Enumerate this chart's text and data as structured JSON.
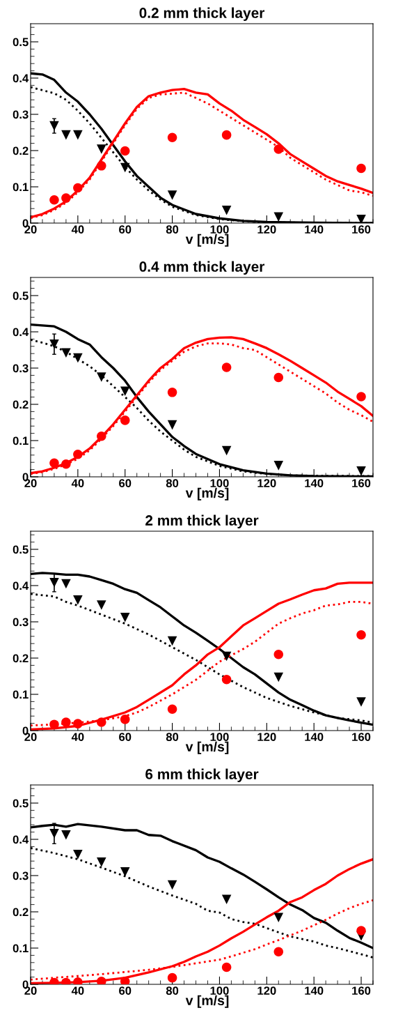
{
  "chart_data": [
    {
      "type": "line",
      "title": "0.2 mm thick layer",
      "xlabel": "v [m/s]",
      "xlim": [
        20,
        165
      ],
      "xticks": [
        20,
        40,
        60,
        80,
        100,
        120,
        140,
        160
      ],
      "ylim": [
        0,
        0.55
      ],
      "yticks": [
        0,
        0.1,
        0.2,
        0.3,
        0.4,
        0.5
      ],
      "series": [
        {
          "color": "#000000",
          "line_style": "solid",
          "x": [
            20,
            25,
            30,
            35,
            40,
            45,
            50,
            55,
            60,
            65,
            70,
            75,
            80,
            90,
            100,
            110,
            120,
            140,
            165
          ],
          "values": [
            0.413,
            0.41,
            0.395,
            0.36,
            0.335,
            0.3,
            0.26,
            0.215,
            0.17,
            0.13,
            0.1,
            0.07,
            0.05,
            0.025,
            0.013,
            0.006,
            0.003,
            0.001,
            0.0
          ]
        },
        {
          "color": "#000000",
          "line_style": "dotted",
          "x": [
            20,
            30,
            35,
            40,
            45,
            50,
            55,
            60,
            65,
            70,
            75,
            80,
            90,
            100,
            110,
            120,
            140,
            165
          ],
          "values": [
            0.375,
            0.358,
            0.34,
            0.31,
            0.275,
            0.235,
            0.195,
            0.155,
            0.12,
            0.09,
            0.065,
            0.045,
            0.022,
            0.011,
            0.005,
            0.002,
            0.001,
            0.0
          ]
        },
        {
          "color": "#ff0000",
          "line_style": "solid",
          "x": [
            20,
            25,
            30,
            35,
            40,
            45,
            50,
            55,
            60,
            65,
            70,
            75,
            80,
            85,
            90,
            95,
            100,
            105,
            110,
            115,
            120,
            125,
            130,
            135,
            140,
            145,
            150,
            155,
            160,
            165
          ],
          "values": [
            0.016,
            0.025,
            0.04,
            0.06,
            0.09,
            0.125,
            0.175,
            0.225,
            0.275,
            0.32,
            0.35,
            0.36,
            0.367,
            0.37,
            0.36,
            0.355,
            0.33,
            0.31,
            0.285,
            0.265,
            0.245,
            0.22,
            0.19,
            0.17,
            0.15,
            0.13,
            0.115,
            0.105,
            0.095,
            0.083
          ]
        },
        {
          "color": "#ff0000",
          "line_style": "dotted",
          "x": [
            20,
            25,
            30,
            35,
            40,
            45,
            50,
            55,
            60,
            65,
            70,
            75,
            80,
            85,
            90,
            95,
            100,
            105,
            110,
            115,
            120,
            125,
            130,
            135,
            140,
            145,
            150,
            155,
            160,
            165
          ],
          "values": [
            0.014,
            0.022,
            0.036,
            0.056,
            0.085,
            0.12,
            0.17,
            0.22,
            0.27,
            0.315,
            0.345,
            0.355,
            0.357,
            0.36,
            0.345,
            0.33,
            0.31,
            0.29,
            0.27,
            0.25,
            0.23,
            0.21,
            0.18,
            0.16,
            0.14,
            0.12,
            0.105,
            0.09,
            0.085,
            0.075
          ]
        },
        {
          "type": "scatter",
          "color": "#000000",
          "marker": "triangle",
          "x": [
            30,
            35,
            40,
            50,
            60,
            80,
            103,
            125,
            160
          ],
          "values": [
            0.268,
            0.243,
            0.243,
            0.204,
            0.153,
            0.077,
            0.035,
            0.017,
            0.01
          ],
          "errors": [
            0.02,
            null,
            null,
            null,
            null,
            null,
            null,
            null,
            null
          ]
        },
        {
          "type": "scatter",
          "color": "#ff0000",
          "marker": "circle",
          "x": [
            30,
            35,
            40,
            50,
            60,
            80,
            103,
            125,
            160
          ],
          "values": [
            0.064,
            0.069,
            0.097,
            0.158,
            0.199,
            0.236,
            0.243,
            0.204,
            0.151
          ]
        }
      ]
    },
    {
      "type": "line",
      "title": "0.4 mm thick layer",
      "xlabel": "v [m/s]",
      "xlim": [
        20,
        165
      ],
      "xticks": [
        20,
        40,
        60,
        80,
        100,
        120,
        140,
        160
      ],
      "ylim": [
        0,
        0.55
      ],
      "yticks": [
        0,
        0.1,
        0.2,
        0.3,
        0.4,
        0.5
      ],
      "series": [
        {
          "color": "#000000",
          "line_style": "solid",
          "x": [
            20,
            30,
            35,
            40,
            45,
            50,
            55,
            60,
            65,
            70,
            75,
            80,
            85,
            90,
            100,
            110,
            120,
            130,
            140,
            165
          ],
          "values": [
            0.42,
            0.415,
            0.4,
            0.38,
            0.365,
            0.33,
            0.3,
            0.265,
            0.22,
            0.18,
            0.145,
            0.11,
            0.085,
            0.063,
            0.035,
            0.018,
            0.009,
            0.004,
            0.002,
            0.001
          ]
        },
        {
          "color": "#000000",
          "line_style": "dotted",
          "x": [
            20,
            25,
            30,
            35,
            40,
            45,
            50,
            55,
            60,
            65,
            70,
            75,
            80,
            85,
            90,
            100,
            110,
            120,
            130,
            140,
            165
          ],
          "values": [
            0.378,
            0.37,
            0.36,
            0.345,
            0.325,
            0.305,
            0.28,
            0.25,
            0.22,
            0.19,
            0.155,
            0.125,
            0.1,
            0.075,
            0.055,
            0.03,
            0.015,
            0.008,
            0.004,
            0.003,
            0.002
          ]
        },
        {
          "color": "#ff0000",
          "line_style": "solid",
          "x": [
            20,
            25,
            30,
            35,
            40,
            45,
            50,
            55,
            60,
            65,
            70,
            75,
            80,
            85,
            90,
            95,
            100,
            105,
            110,
            115,
            120,
            125,
            130,
            135,
            140,
            145,
            150,
            155,
            160,
            165
          ],
          "values": [
            0.01,
            0.015,
            0.025,
            0.038,
            0.055,
            0.078,
            0.11,
            0.145,
            0.185,
            0.225,
            0.265,
            0.3,
            0.325,
            0.355,
            0.37,
            0.38,
            0.384,
            0.385,
            0.38,
            0.368,
            0.355,
            0.338,
            0.32,
            0.3,
            0.28,
            0.26,
            0.235,
            0.215,
            0.195,
            0.168
          ]
        },
        {
          "color": "#ff0000",
          "line_style": "dotted",
          "x": [
            20,
            25,
            30,
            35,
            40,
            45,
            50,
            55,
            60,
            65,
            70,
            75,
            80,
            85,
            90,
            95,
            100,
            105,
            110,
            115,
            120,
            125,
            130,
            135,
            140,
            145,
            150,
            155,
            160,
            165
          ],
          "values": [
            0.008,
            0.013,
            0.022,
            0.034,
            0.05,
            0.073,
            0.105,
            0.14,
            0.18,
            0.22,
            0.26,
            0.295,
            0.32,
            0.345,
            0.36,
            0.368,
            0.368,
            0.365,
            0.355,
            0.35,
            0.33,
            0.31,
            0.29,
            0.27,
            0.25,
            0.23,
            0.205,
            0.185,
            0.17,
            0.152
          ]
        },
        {
          "type": "scatter",
          "color": "#000000",
          "marker": "triangle",
          "x": [
            30,
            35,
            40,
            50,
            60,
            80,
            103,
            125,
            160
          ],
          "values": [
            0.366,
            0.342,
            0.328,
            0.275,
            0.236,
            0.143,
            0.072,
            0.031,
            0.016
          ],
          "errors": [
            0.028,
            null,
            null,
            null,
            null,
            null,
            null,
            null,
            null
          ]
        },
        {
          "type": "scatter",
          "color": "#ff0000",
          "marker": "circle",
          "x": [
            30,
            35,
            40,
            50,
            60,
            80,
            103,
            125,
            160
          ],
          "values": [
            0.038,
            0.035,
            0.062,
            0.112,
            0.156,
            0.233,
            0.302,
            0.274,
            0.221
          ]
        }
      ]
    },
    {
      "type": "line",
      "title": "2 mm thick layer",
      "xlabel": "v [m/s]",
      "xlim": [
        20,
        165
      ],
      "xticks": [
        20,
        40,
        60,
        80,
        100,
        120,
        140,
        160
      ],
      "ylim": [
        0,
        0.55
      ],
      "yticks": [
        0,
        0.1,
        0.2,
        0.3,
        0.4,
        0.5
      ],
      "series": [
        {
          "color": "#000000",
          "line_style": "solid",
          "x": [
            20,
            25,
            30,
            35,
            40,
            45,
            50,
            55,
            60,
            65,
            70,
            75,
            80,
            85,
            90,
            95,
            100,
            105,
            110,
            115,
            120,
            125,
            130,
            135,
            140,
            145,
            150,
            155,
            160,
            165
          ],
          "values": [
            0.432,
            0.435,
            0.433,
            0.43,
            0.43,
            0.425,
            0.415,
            0.405,
            0.39,
            0.38,
            0.36,
            0.34,
            0.315,
            0.29,
            0.27,
            0.248,
            0.225,
            0.2,
            0.175,
            0.155,
            0.13,
            0.105,
            0.085,
            0.07,
            0.055,
            0.042,
            0.035,
            0.028,
            0.022,
            0.016
          ]
        },
        {
          "color": "#000000",
          "line_style": "dotted",
          "x": [
            20,
            30,
            35,
            40,
            50,
            60,
            70,
            80,
            90,
            100,
            110,
            120,
            130,
            140,
            150,
            160,
            165
          ],
          "values": [
            0.377,
            0.37,
            0.355,
            0.345,
            0.32,
            0.295,
            0.265,
            0.23,
            0.195,
            0.155,
            0.12,
            0.09,
            0.068,
            0.05,
            0.035,
            0.028,
            0.022
          ]
        },
        {
          "color": "#ff0000",
          "line_style": "solid",
          "x": [
            20,
            30,
            40,
            50,
            60,
            65,
            70,
            80,
            85,
            90,
            95,
            100,
            105,
            110,
            115,
            120,
            125,
            130,
            135,
            140,
            145,
            150,
            155,
            165
          ],
          "values": [
            0.003,
            0.006,
            0.013,
            0.03,
            0.05,
            0.065,
            0.085,
            0.125,
            0.155,
            0.18,
            0.21,
            0.23,
            0.26,
            0.29,
            0.31,
            0.33,
            0.35,
            0.362,
            0.375,
            0.387,
            0.392,
            0.405,
            0.408,
            0.408
          ]
        },
        {
          "color": "#ff0000",
          "line_style": "dotted",
          "x": [
            20,
            30,
            40,
            50,
            60,
            65,
            70,
            80,
            90,
            100,
            110,
            115,
            120,
            125,
            130,
            135,
            140,
            145,
            150,
            155,
            160,
            165
          ],
          "values": [
            0.014,
            0.017,
            0.022,
            0.028,
            0.04,
            0.05,
            0.065,
            0.1,
            0.14,
            0.19,
            0.225,
            0.245,
            0.27,
            0.295,
            0.31,
            0.323,
            0.332,
            0.345,
            0.348,
            0.355,
            0.355,
            0.35
          ]
        },
        {
          "type": "scatter",
          "color": "#000000",
          "marker": "triangle",
          "x": [
            30,
            35,
            40,
            50,
            60,
            80,
            103,
            125,
            160
          ],
          "values": [
            0.408,
            0.405,
            0.36,
            0.346,
            0.312,
            0.247,
            0.205,
            0.147,
            0.079
          ],
          "errors": [
            0.025,
            null,
            null,
            null,
            null,
            null,
            null,
            null,
            null
          ]
        },
        {
          "type": "scatter",
          "color": "#ff0000",
          "marker": "circle",
          "x": [
            30,
            35,
            40,
            50,
            60,
            80,
            103,
            125,
            160
          ],
          "values": [
            0.017,
            0.023,
            0.019,
            0.023,
            0.031,
            0.059,
            0.141,
            0.21,
            0.264
          ]
        }
      ]
    },
    {
      "type": "line",
      "title": "6 mm thick layer",
      "xlabel": "v [m/s]",
      "xlim": [
        20,
        165
      ],
      "xticks": [
        20,
        40,
        60,
        80,
        100,
        120,
        140,
        160
      ],
      "ylim": [
        0,
        0.55
      ],
      "yticks": [
        0,
        0.1,
        0.2,
        0.3,
        0.4,
        0.5
      ],
      "series": [
        {
          "color": "#000000",
          "line_style": "solid",
          "x": [
            20,
            25,
            30,
            35,
            40,
            50,
            60,
            65,
            70,
            75,
            80,
            90,
            95,
            100,
            105,
            110,
            115,
            120,
            125,
            130,
            135,
            140,
            145,
            150,
            155,
            160,
            165
          ],
          "values": [
            0.433,
            0.437,
            0.44,
            0.435,
            0.442,
            0.435,
            0.425,
            0.425,
            0.412,
            0.41,
            0.395,
            0.37,
            0.35,
            0.338,
            0.32,
            0.303,
            0.283,
            0.262,
            0.24,
            0.22,
            0.205,
            0.183,
            0.17,
            0.148,
            0.128,
            0.115,
            0.1
          ]
        },
        {
          "color": "#000000",
          "line_style": "dotted",
          "x": [
            20,
            30,
            40,
            50,
            60,
            70,
            80,
            90,
            95,
            100,
            105,
            110,
            115,
            120,
            130,
            140,
            145,
            150,
            160,
            165
          ],
          "values": [
            0.376,
            0.362,
            0.345,
            0.322,
            0.298,
            0.27,
            0.245,
            0.222,
            0.203,
            0.198,
            0.18,
            0.172,
            0.167,
            0.155,
            0.132,
            0.118,
            0.107,
            0.1,
            0.083,
            0.074
          ]
        },
        {
          "color": "#ff0000",
          "line_style": "solid",
          "x": [
            20,
            30,
            40,
            50,
            60,
            70,
            80,
            85,
            90,
            95,
            100,
            105,
            110,
            115,
            120,
            125,
            130,
            135,
            140,
            145,
            150,
            155,
            160,
            165
          ],
          "values": [
            0.003,
            0.004,
            0.006,
            0.01,
            0.018,
            0.033,
            0.05,
            0.062,
            0.077,
            0.09,
            0.107,
            0.127,
            0.145,
            0.165,
            0.185,
            0.203,
            0.227,
            0.24,
            0.26,
            0.277,
            0.3,
            0.318,
            0.333,
            0.345
          ]
        },
        {
          "color": "#ff0000",
          "line_style": "dotted",
          "x": [
            20,
            30,
            40,
            50,
            60,
            70,
            80,
            90,
            100,
            105,
            110,
            115,
            120,
            125,
            130,
            135,
            140,
            145,
            150,
            155,
            160,
            165
          ],
          "values": [
            0.013,
            0.018,
            0.023,
            0.028,
            0.034,
            0.04,
            0.048,
            0.058,
            0.068,
            0.077,
            0.087,
            0.097,
            0.11,
            0.122,
            0.135,
            0.148,
            0.163,
            0.178,
            0.195,
            0.21,
            0.222,
            0.232
          ]
        },
        {
          "type": "scatter",
          "color": "#000000",
          "marker": "triangle",
          "x": [
            30,
            35,
            40,
            50,
            60,
            80,
            103,
            125,
            160
          ],
          "values": [
            0.416,
            0.412,
            0.358,
            0.337,
            0.31,
            0.274,
            0.234,
            0.184,
            0.133
          ],
          "errors": [
            0.028,
            null,
            null,
            null,
            null,
            null,
            null,
            null,
            null
          ]
        },
        {
          "type": "scatter",
          "color": "#ff0000",
          "marker": "circle",
          "x": [
            30,
            35,
            40,
            50,
            60,
            80,
            103,
            125,
            160
          ],
          "values": [
            0.005,
            0.005,
            0.006,
            0.008,
            0.008,
            0.018,
            0.047,
            0.09,
            0.148
          ]
        }
      ]
    }
  ]
}
